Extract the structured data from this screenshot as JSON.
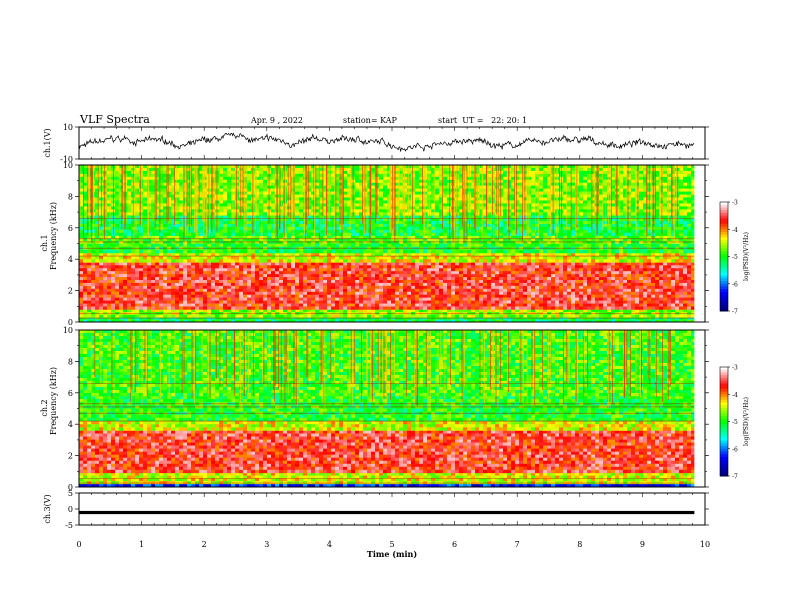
{
  "header": {
    "title": "VLF Spectra",
    "date": "Apr. 9 , 2022",
    "station": "station= KAP",
    "start": "start  UT =   22: 20: 1"
  },
  "chart_data": [
    {
      "type": "line",
      "panel": "ch1-waveform",
      "ylabel": "ch.1(V)",
      "ylim": [
        -10,
        10
      ],
      "yticks": [
        "10",
        "-10"
      ],
      "xlim": [
        0,
        10
      ],
      "description_series": "noisy waveform, mean about 0 V, amplitude about ±4 V"
    },
    {
      "type": "heatmap",
      "panel": "ch1-spectrogram",
      "ylabel": "ch.1\nFrequency (kHz)",
      "ylabel_line1": "ch.1",
      "ylabel_line2": "Frequency (kHz)",
      "ylim": [
        0,
        10
      ],
      "yticks": [
        "0",
        "2",
        "4",
        "6",
        "8",
        "10"
      ],
      "xlim": [
        0,
        10
      ],
      "bands": [
        {
          "from": 0,
          "to": 0.3,
          "level": -5.2
        },
        {
          "from": 0.3,
          "to": 0.8,
          "level": -4.6
        },
        {
          "from": 0.8,
          "to": 3.8,
          "level": -3.6
        },
        {
          "from": 3.8,
          "to": 4.4,
          "level": -4.4
        },
        {
          "from": 4.4,
          "to": 5.0,
          "level": -5.0
        },
        {
          "from": 5.0,
          "to": 5.5,
          "level": -4.8
        },
        {
          "from": 5.5,
          "to": 6.8,
          "level": -5.1
        },
        {
          "from": 6.8,
          "to": 10,
          "level": -4.7
        }
      ],
      "colorbar": {
        "label": "log(PSD)(V²/Hz)",
        "ticks": [
          "-3",
          "-4",
          "-5",
          "-6",
          "-7"
        ],
        "range": [
          -7,
          -3
        ]
      }
    },
    {
      "type": "heatmap",
      "panel": "ch2-spectrogram",
      "ylabel": "ch.2\nFrequency (kHz)",
      "ylabel_line1": "ch.2",
      "ylabel_line2": "Frequency (kHz)",
      "ylim": [
        0,
        10
      ],
      "yticks": [
        "0",
        "2",
        "4",
        "6",
        "8",
        "10"
      ],
      "xlim": [
        0,
        10
      ],
      "bands": [
        {
          "from": 0,
          "to": 0.2,
          "level": -6.3
        },
        {
          "from": 0.2,
          "to": 0.9,
          "level": -4.4
        },
        {
          "from": 0.9,
          "to": 3.6,
          "level": -3.6
        },
        {
          "from": 3.6,
          "to": 4.2,
          "level": -4.4
        },
        {
          "from": 4.2,
          "to": 5.8,
          "level": -5.0
        },
        {
          "from": 5.8,
          "to": 10,
          "level": -4.9
        }
      ],
      "colorbar": {
        "label": "log(PSD)(V²/Hz)",
        "ticks": [
          "-3",
          "-4",
          "-5",
          "-6",
          "-7"
        ],
        "range": [
          -7,
          -3
        ]
      }
    },
    {
      "type": "line",
      "panel": "ch3-waveform",
      "ylabel": "ch.3(V)",
      "ylim": [
        -5,
        5
      ],
      "yticks": [
        "5",
        "0",
        "-5"
      ],
      "xlim": [
        0,
        10
      ],
      "description_series": "dense signal about -1 V with small amplitude"
    }
  ],
  "xaxis": {
    "label": "Time (min)",
    "ticks": [
      "0",
      "1",
      "2",
      "3",
      "4",
      "5",
      "6",
      "7",
      "8",
      "9",
      "10"
    ],
    "data_end": 9.83
  },
  "colors": {
    "scale": [
      "#000080",
      "#0000ff",
      "#00ffff",
      "#00ff00",
      "#ffff00",
      "#ff0000",
      "#ffffff"
    ]
  }
}
